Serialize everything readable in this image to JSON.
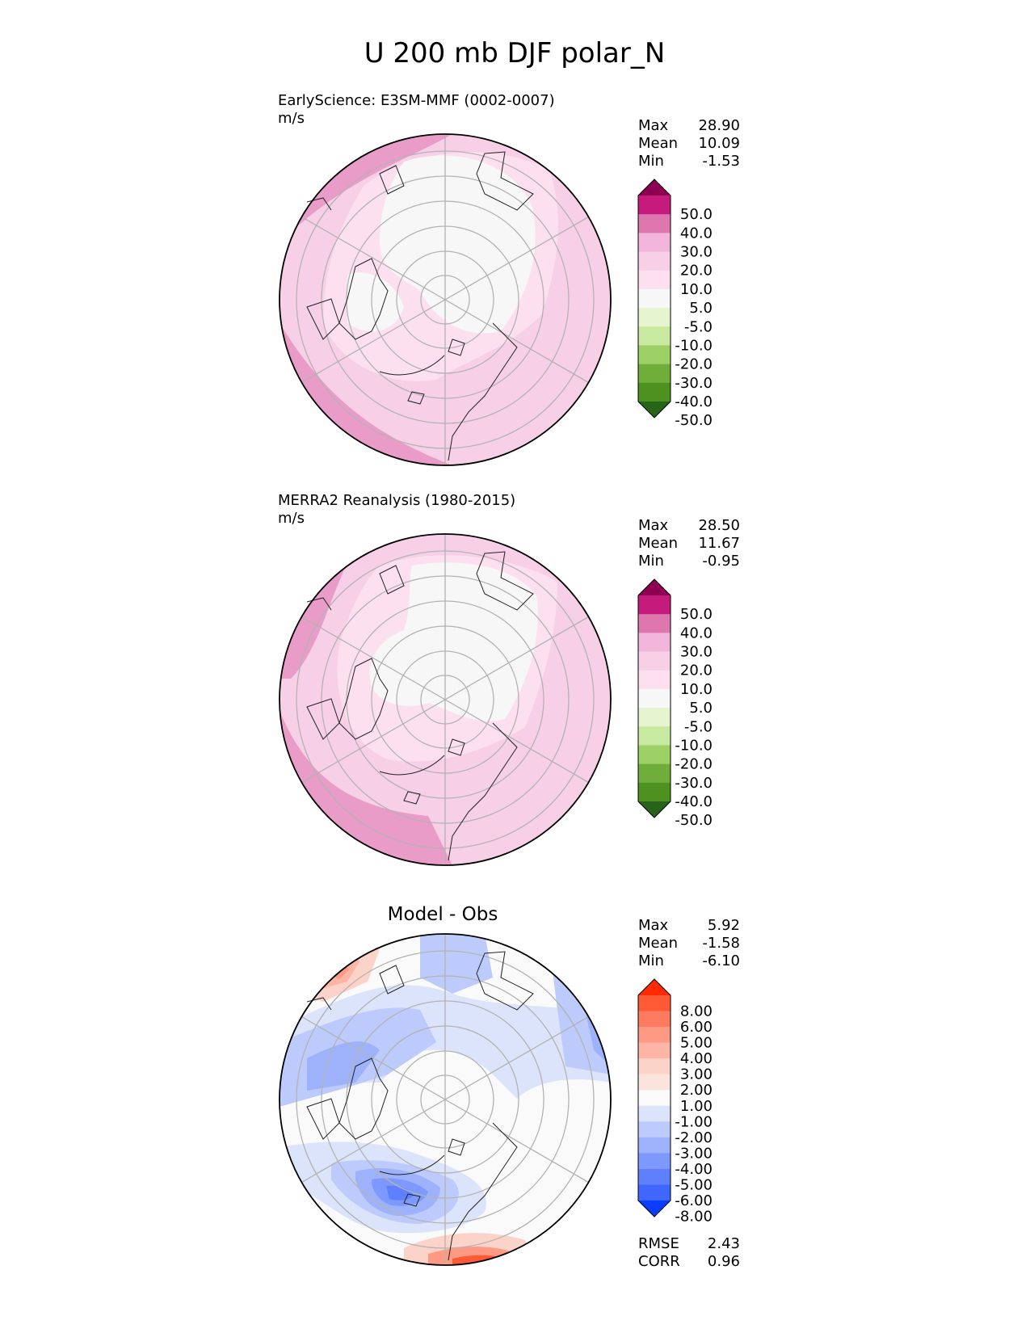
{
  "figure": {
    "title": "U 200 mb DJF polar_N"
  },
  "chart_data": [
    {
      "type": "polar_contour",
      "subtitle": "EarlyScience: E3SM-MMF (0002-0007)",
      "units": "m/s",
      "stats": [
        {
          "label": "Max",
          "value": "28.90"
        },
        {
          "label": "Mean",
          "value": "10.09"
        },
        {
          "label": "Min",
          "value": "-1.53"
        }
      ],
      "colorbar": {
        "ticks": [
          "50.0",
          "40.0",
          "30.0",
          "20.0",
          "10.0",
          "5.0",
          "-5.0",
          "-10.0",
          "-20.0",
          "-30.0",
          "-40.0",
          "-50.0"
        ],
        "colors": [
          "#8e0152",
          "#c51b7d",
          "#de77ae",
          "#f1b6da",
          "#f7cfe6",
          "#fde0ef",
          "#f7f7f7",
          "#e6f5d0",
          "#c7e9a0",
          "#9dd067",
          "#70ae3c",
          "#4d9221",
          "#276419"
        ]
      }
    },
    {
      "type": "polar_contour",
      "subtitle": "MERRA2 Reanalysis (1980-2015)",
      "units": "m/s",
      "stats": [
        {
          "label": "Max",
          "value": "28.50"
        },
        {
          "label": "Mean",
          "value": "11.67"
        },
        {
          "label": "Min",
          "value": "-0.95"
        }
      ],
      "colorbar": {
        "ticks": [
          "50.0",
          "40.0",
          "30.0",
          "20.0",
          "10.0",
          "5.0",
          "-5.0",
          "-10.0",
          "-20.0",
          "-30.0",
          "-40.0",
          "-50.0"
        ],
        "colors": [
          "#8e0152",
          "#c51b7d",
          "#de77ae",
          "#f1b6da",
          "#f7cfe6",
          "#fde0ef",
          "#f7f7f7",
          "#e6f5d0",
          "#c7e9a0",
          "#9dd067",
          "#70ae3c",
          "#4d9221",
          "#276419"
        ]
      }
    },
    {
      "type": "polar_contour",
      "title": "Model - Obs",
      "stats": [
        {
          "label": "Max",
          "value": "5.92"
        },
        {
          "label": "Mean",
          "value": "-1.58"
        },
        {
          "label": "Min",
          "value": "-6.10"
        }
      ],
      "metrics": [
        {
          "label": "RMSE",
          "value": "2.43"
        },
        {
          "label": "CORR",
          "value": "0.96"
        }
      ],
      "colorbar": {
        "ticks": [
          "8.00",
          "6.00",
          "5.00",
          "4.00",
          "3.00",
          "2.00",
          "1.00",
          "-1.00",
          "-2.00",
          "-3.00",
          "-4.00",
          "-5.00",
          "-6.00",
          "-8.00"
        ],
        "colors": [
          "#ff2a00",
          "#ff5a36",
          "#ff7b5f",
          "#fe9a84",
          "#fdb6a6",
          "#fcd3c9",
          "#fbe4de",
          "#fafafa",
          "#dce4fb",
          "#bccbfb",
          "#9eb2fc",
          "#7e99fd",
          "#5f80fd",
          "#3f66fe",
          "#0a3dff"
        ]
      }
    }
  ]
}
